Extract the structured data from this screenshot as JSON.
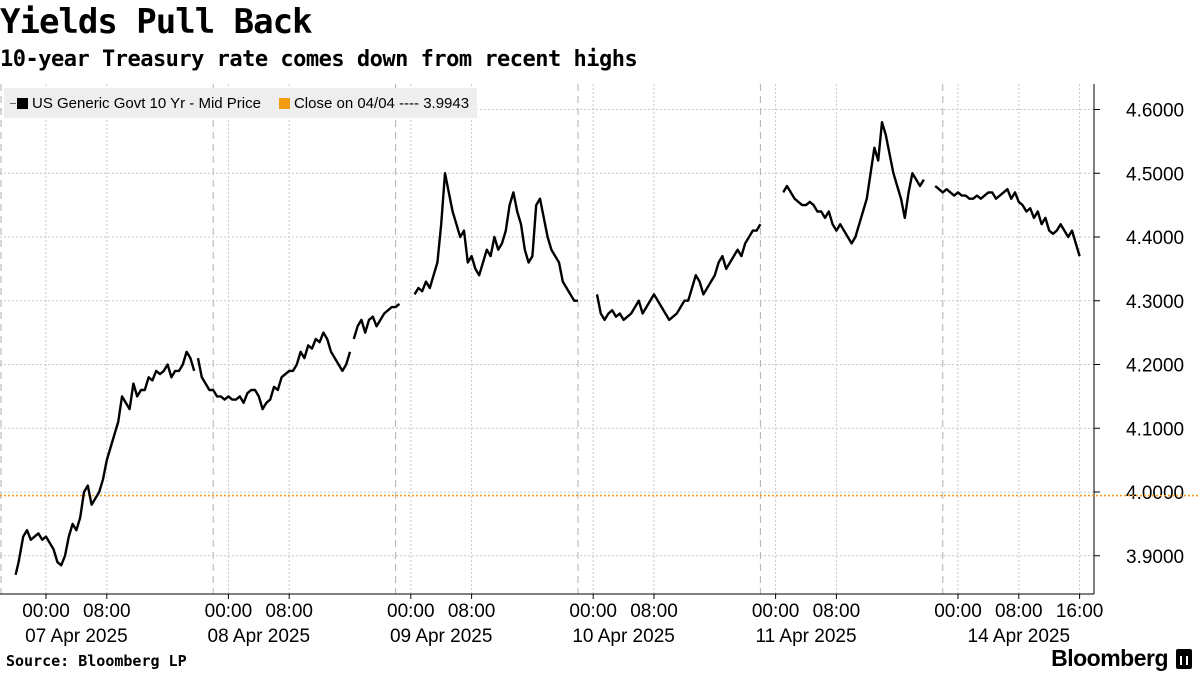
{
  "title": "Yields Pull Back",
  "subtitle": "10-year Treasury rate comes down from recent highs",
  "legend": {
    "series_label": "US Generic Govt 10 Yr - Mid Price",
    "close_label": "Close on 04/04 ---- 3.9943"
  },
  "footer": {
    "source": "Source: Bloomberg LP",
    "brand": "Bloomberg"
  },
  "colors": {
    "series": "#000000",
    "reference": "#f39c12",
    "grid": "#c8c8c8",
    "legend_bg": "#eeeeee"
  },
  "chart_data": {
    "type": "line",
    "title": "Yields Pull Back",
    "subtitle": "10-year Treasury rate comes down from recent highs",
    "ylim": [
      3.84,
      4.64
    ],
    "y_ticks": [
      3.9,
      4.0,
      4.1,
      4.2,
      4.3,
      4.4,
      4.5,
      4.6
    ],
    "y_tick_labels": [
      "3.9000",
      "4.0000",
      "4.1000",
      "4.2000",
      "4.3000",
      "4.4000",
      "4.5000",
      "4.6000"
    ],
    "y_axis_side": "right",
    "grid": true,
    "legend_position": "top-left",
    "x_axis": {
      "unit": "hours",
      "sessions": [
        {
          "date_label": "07 Apr 2025",
          "time_labels": [
            "00:00",
            "08:00"
          ],
          "start": 0,
          "end": 22
        },
        {
          "date_label": "08 Apr 2025",
          "time_labels": [
            "00:00",
            "08:00"
          ],
          "start": 24,
          "end": 46
        },
        {
          "date_label": "09 Apr 2025",
          "time_labels": [
            "00:00",
            "08:00"
          ],
          "start": 48,
          "end": 70
        },
        {
          "date_label": "10 Apr 2025",
          "time_labels": [
            "00:00",
            "08:00"
          ],
          "start": 72,
          "end": 94
        },
        {
          "date_label": "11 Apr 2025",
          "time_labels": [
            "00:00",
            "08:00"
          ],
          "start": 96,
          "end": 118
        },
        {
          "date_label": "14 Apr 2025",
          "time_labels": [
            "00:00",
            "08:00",
            "16:00"
          ],
          "start": 120,
          "end": 144
        }
      ]
    },
    "reference_line": {
      "label": "Close on 04/04",
      "value": 3.9943
    },
    "series": [
      {
        "name": "US Generic Govt 10 Yr - Mid Price",
        "segments": [
          {
            "x": [
              -4,
              -3.6,
              -3.3,
              -3,
              -2.5,
              -2,
              -1.5,
              -1,
              -0.5,
              0,
              0.5,
              1,
              1.5,
              2,
              2.5,
              3,
              3.5,
              4,
              4.5,
              5,
              5.5,
              6,
              6.5,
              7,
              7.5,
              8,
              8.5,
              9,
              9.5,
              10,
              10.5,
              11,
              11.5,
              12,
              12.5,
              13,
              13.5,
              14,
              14.5,
              15,
              15.5,
              16,
              16.5,
              17,
              17.5,
              18,
              18.5,
              19,
              19.5
            ],
            "y": [
              3.87,
              3.89,
              3.91,
              3.93,
              3.94,
              3.925,
              3.93,
              3.935,
              3.925,
              3.93,
              3.92,
              3.91,
              3.89,
              3.885,
              3.9,
              3.93,
              3.95,
              3.94,
              3.96,
              4.0,
              4.01,
              3.98,
              3.99,
              4.0,
              4.02,
              4.05,
              4.07,
              4.09,
              4.11,
              4.15,
              4.14,
              4.13,
              4.17,
              4.15,
              4.16,
              4.16,
              4.18,
              4.175,
              4.19,
              4.185,
              4.19,
              4.2,
              4.18,
              4.19,
              4.19,
              4.2,
              4.22,
              4.21,
              4.19
            ]
          },
          {
            "x": [
              20,
              20.5,
              21,
              21.5,
              22,
              22.5,
              23,
              23.5,
              24,
              24.5,
              25,
              25.5,
              26,
              26.5,
              27,
              27.5,
              28,
              28.5,
              29,
              29.5,
              30,
              30.5,
              31,
              31.5,
              32,
              32.5,
              33,
              33.5,
              34,
              34.5,
              35,
              35.5,
              36,
              36.5,
              37,
              37.5,
              38,
              38.5,
              39,
              39.5,
              40
            ],
            "y": [
              4.21,
              4.18,
              4.17,
              4.16,
              4.16,
              4.15,
              4.15,
              4.145,
              4.15,
              4.145,
              4.145,
              4.15,
              4.14,
              4.155,
              4.16,
              4.16,
              4.15,
              4.13,
              4.14,
              4.145,
              4.165,
              4.16,
              4.18,
              4.185,
              4.19,
              4.19,
              4.2,
              4.22,
              4.21,
              4.23,
              4.225,
              4.24,
              4.235,
              4.25,
              4.24,
              4.22,
              4.21,
              4.2,
              4.19,
              4.2,
              4.22
            ]
          },
          {
            "x": [
              40.5,
              41,
              41.5,
              42,
              42.5,
              43,
              43.5,
              44,
              44.5,
              45,
              45.5,
              46,
              46.5
            ],
            "y": [
              4.24,
              4.26,
              4.27,
              4.25,
              4.27,
              4.275,
              4.26,
              4.27,
              4.28,
              4.285,
              4.29,
              4.29,
              4.295
            ]
          },
          {
            "x": [
              48.5,
              49,
              49.5,
              50,
              50.5,
              51,
              51.5,
              52,
              52.5,
              53,
              53.5,
              54,
              54.5,
              55,
              55.5,
              56,
              56.5,
              57,
              57.5,
              58,
              58.5,
              59,
              59.5,
              60,
              60.5,
              61,
              61.5,
              62,
              62.5,
              63,
              63.5,
              64,
              64.5,
              65,
              65.5,
              66,
              66.5,
              67,
              67.5,
              68,
              68.5,
              69,
              69.5,
              70
            ],
            "y": [
              4.31,
              4.32,
              4.315,
              4.33,
              4.32,
              4.34,
              4.36,
              4.42,
              4.5,
              4.47,
              4.44,
              4.42,
              4.4,
              4.41,
              4.36,
              4.37,
              4.35,
              4.34,
              4.36,
              4.38,
              4.37,
              4.4,
              4.38,
              4.39,
              4.41,
              4.45,
              4.47,
              4.44,
              4.42,
              4.38,
              4.36,
              4.37,
              4.45,
              4.46,
              4.43,
              4.4,
              4.38,
              4.37,
              4.36,
              4.33,
              4.32,
              4.31,
              4.3,
              4.3
            ]
          },
          {
            "x": [
              72.5,
              73,
              73.5,
              74,
              74.5,
              75,
              75.5,
              76,
              76.5,
              77,
              77.5,
              78,
              78.5,
              79,
              79.5,
              80,
              80.5,
              81,
              81.5,
              82,
              82.5,
              83,
              83.5,
              84,
              84.5,
              85,
              85.5,
              86,
              86.5,
              87,
              87.5,
              88,
              88.5,
              89,
              89.5,
              90,
              90.5,
              91,
              91.5,
              92,
              92.5,
              93,
              93.5,
              94
            ],
            "y": [
              4.31,
              4.28,
              4.27,
              4.28,
              4.285,
              4.275,
              4.28,
              4.27,
              4.275,
              4.28,
              4.29,
              4.3,
              4.28,
              4.29,
              4.3,
              4.31,
              4.3,
              4.29,
              4.28,
              4.27,
              4.275,
              4.28,
              4.29,
              4.3,
              4.3,
              4.32,
              4.34,
              4.33,
              4.31,
              4.32,
              4.33,
              4.34,
              4.36,
              4.37,
              4.35,
              4.36,
              4.37,
              4.38,
              4.37,
              4.39,
              4.4,
              4.41,
              4.41,
              4.42
            ]
          },
          {
            "x": [
              97,
              97.5,
              98,
              98.5,
              99,
              99.5,
              100,
              100.5,
              101,
              101.5,
              102,
              102.5,
              103,
              103.5,
              104,
              104.5,
              105,
              105.5,
              106,
              106.5,
              107,
              107.5,
              108,
              108.5,
              109,
              109.5,
              110,
              110.5,
              111,
              111.5,
              112,
              112.5,
              113,
              113.5,
              114,
              114.5,
              115,
              115.5
            ],
            "y": [
              4.47,
              4.48,
              4.47,
              4.46,
              4.455,
              4.45,
              4.45,
              4.455,
              4.45,
              4.44,
              4.44,
              4.43,
              4.44,
              4.42,
              4.41,
              4.42,
              4.41,
              4.4,
              4.39,
              4.4,
              4.42,
              4.44,
              4.46,
              4.5,
              4.54,
              4.52,
              4.58,
              4.56,
              4.53,
              4.5,
              4.48,
              4.46,
              4.43,
              4.47,
              4.5,
              4.49,
              4.48,
              4.49
            ]
          },
          {
            "x": [
              117,
              117.5,
              118,
              118.5,
              119,
              119.5,
              120,
              120.5,
              121,
              121.5,
              122,
              122.5,
              123,
              123.5,
              124,
              124.5,
              125,
              125.5,
              126,
              126.5,
              127,
              127.5,
              128,
              128.5,
              129,
              129.5,
              130,
              130.5,
              131,
              131.5,
              132,
              132.5,
              133,
              133.5,
              134,
              134.5,
              135,
              135.5,
              136
            ],
            "y": [
              4.48,
              4.475,
              4.47,
              4.475,
              4.47,
              4.465,
              4.47,
              4.465,
              4.465,
              4.46,
              4.46,
              4.465,
              4.46,
              4.465,
              4.47,
              4.47,
              4.46,
              4.465,
              4.47,
              4.475,
              4.46,
              4.47,
              4.455,
              4.45,
              4.44,
              4.445,
              4.43,
              4.44,
              4.42,
              4.43,
              4.41,
              4.405,
              4.41,
              4.42,
              4.41,
              4.4,
              4.41,
              4.39,
              4.37
            ]
          }
        ]
      }
    ]
  }
}
